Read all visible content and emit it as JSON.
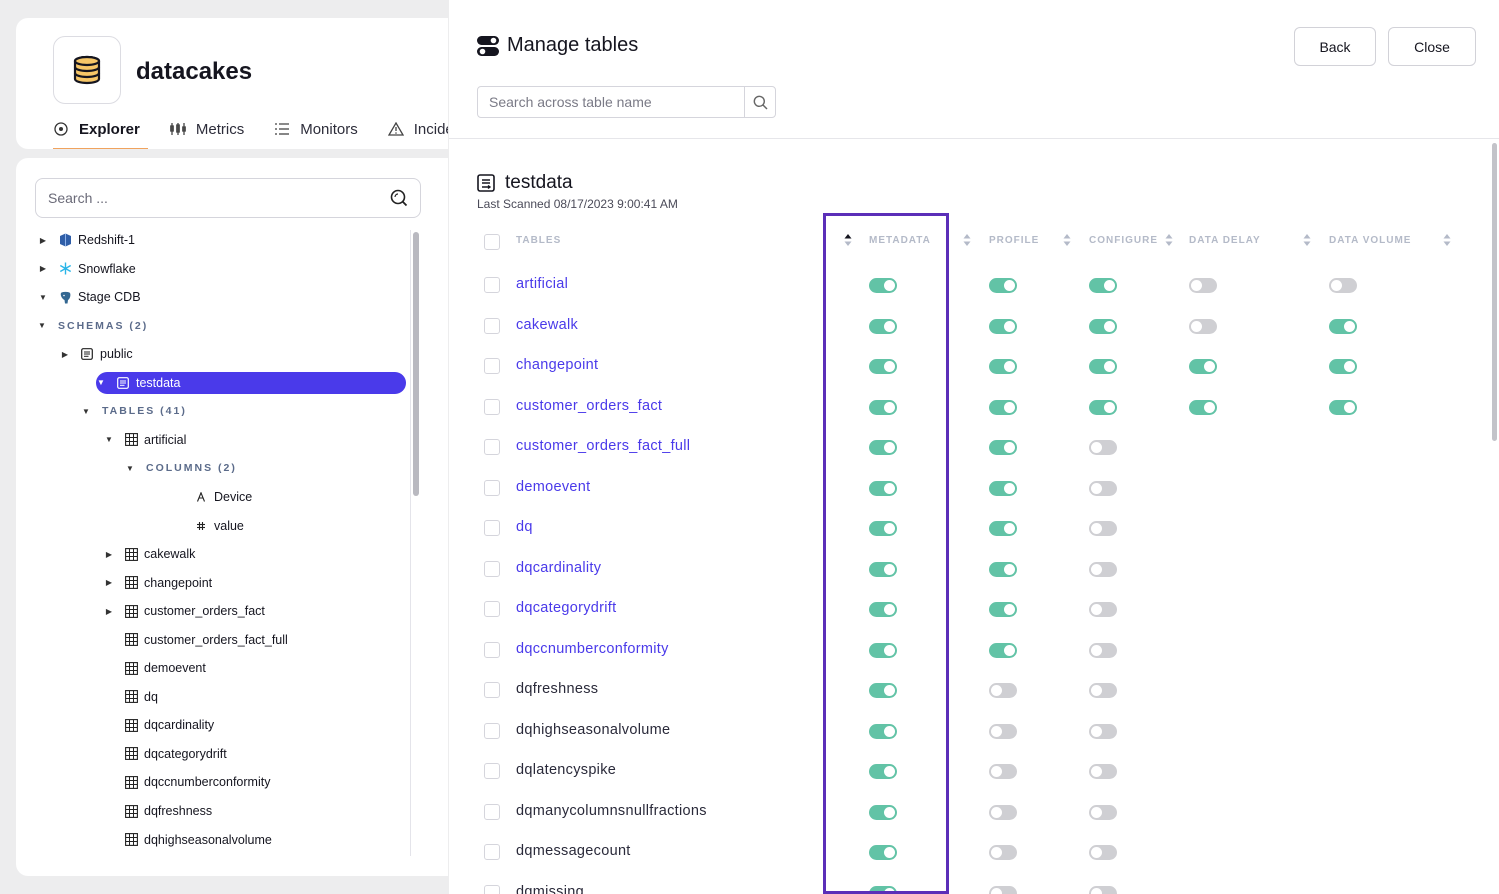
{
  "app": {
    "name": "datacakes",
    "logo_icon": "database-icon",
    "nav": [
      {
        "label": "Explorer",
        "icon": "target-icon",
        "active": true
      },
      {
        "label": "Metrics",
        "icon": "metrics-icon",
        "active": false
      },
      {
        "label": "Monitors",
        "icon": "list-icon",
        "active": false
      },
      {
        "label": "Incidents",
        "icon": "warning-icon",
        "active": false
      }
    ],
    "accent": "#f0a35e"
  },
  "tree": {
    "search_placeholder": "Search ...",
    "items": [
      {
        "label": "Redshift-1",
        "icon": "redshift-icon",
        "caret": "right",
        "level": 0,
        "kind": "node"
      },
      {
        "label": "Snowflake",
        "icon": "snowflake-icon",
        "caret": "right",
        "level": 0,
        "kind": "node"
      },
      {
        "label": "Stage CDB",
        "icon": "postgres-icon",
        "caret": "down",
        "level": 0,
        "kind": "node"
      },
      {
        "label": "SCHEMAS (2)",
        "icon": "",
        "caret": "down",
        "level": 1,
        "kind": "section"
      },
      {
        "label": "public",
        "icon": "schema-icon",
        "caret": "right",
        "level": 2,
        "kind": "node"
      },
      {
        "label": "testdata",
        "icon": "schema-icon",
        "caret": "down",
        "level": 2,
        "kind": "node",
        "selected": true
      },
      {
        "label": "TABLES (41)",
        "icon": "",
        "caret": "down",
        "level": 3,
        "kind": "section"
      },
      {
        "label": "artificial",
        "icon": "table-icon",
        "caret": "down",
        "level": 4,
        "kind": "node"
      },
      {
        "label": "COLUMNS (2)",
        "icon": "",
        "caret": "down",
        "level": 5,
        "kind": "section"
      },
      {
        "label": "Device",
        "icon": "text-column-icon",
        "caret": "",
        "level": 6,
        "kind": "node"
      },
      {
        "label": "value",
        "icon": "number-column-icon",
        "caret": "",
        "level": 6,
        "kind": "node"
      },
      {
        "label": "cakewalk",
        "icon": "table-icon",
        "caret": "right",
        "level": 4,
        "kind": "node"
      },
      {
        "label": "changepoint",
        "icon": "table-icon",
        "caret": "right",
        "level": 4,
        "kind": "node"
      },
      {
        "label": "customer_orders_fact",
        "icon": "table-icon",
        "caret": "right",
        "level": 4,
        "kind": "node"
      },
      {
        "label": "customer_orders_fact_full",
        "icon": "table-icon",
        "caret": "",
        "level": 4,
        "kind": "node"
      },
      {
        "label": "demoevent",
        "icon": "table-icon",
        "caret": "",
        "level": 4,
        "kind": "node"
      },
      {
        "label": "dq",
        "icon": "table-icon",
        "caret": "",
        "level": 4,
        "kind": "node"
      },
      {
        "label": "dqcardinality",
        "icon": "table-icon",
        "caret": "",
        "level": 4,
        "kind": "node"
      },
      {
        "label": "dqcategorydrift",
        "icon": "table-icon",
        "caret": "",
        "level": 4,
        "kind": "node"
      },
      {
        "label": "dqccnumberconformity",
        "icon": "table-icon",
        "caret": "",
        "level": 4,
        "kind": "node"
      },
      {
        "label": "dqfreshness",
        "icon": "table-icon",
        "caret": "",
        "level": 4,
        "kind": "node"
      },
      {
        "label": "dqhighseasonalvolume",
        "icon": "table-icon",
        "caret": "",
        "level": 4,
        "kind": "node"
      }
    ],
    "selected_color": "#4a3aea"
  },
  "drawer": {
    "title": "Manage tables",
    "title_icon": "toggles-icon",
    "back_label": "Back",
    "close_label": "Close",
    "search_placeholder": "Search across table name",
    "schema_name": "testdata",
    "schema_icon": "schema-icon",
    "last_scanned": "Last Scanned 08/17/2023 9:00:41 AM",
    "columns": {
      "tables": "TABLES",
      "metadata": "METADATA",
      "profile": "PROFILE",
      "configure": "CONFIGURE",
      "data_delay": "DATA DELAY",
      "data_volume": "DATA VOLUME"
    },
    "sorted_column": "metadata",
    "toggle_on_color": "#62c3a6",
    "toggle_off_color": "#cfcfd3",
    "highlight_color": "#5b2fb8",
    "rows": [
      {
        "name": "artificial",
        "linked": true,
        "metadata": true,
        "profile": true,
        "configure": true,
        "data_delay": false,
        "data_volume": false
      },
      {
        "name": "cakewalk",
        "linked": true,
        "metadata": true,
        "profile": true,
        "configure": true,
        "data_delay": false,
        "data_volume": true
      },
      {
        "name": "changepoint",
        "linked": true,
        "metadata": true,
        "profile": true,
        "configure": true,
        "data_delay": true,
        "data_volume": true
      },
      {
        "name": "customer_orders_fact",
        "linked": true,
        "metadata": true,
        "profile": true,
        "configure": true,
        "data_delay": true,
        "data_volume": true
      },
      {
        "name": "customer_orders_fact_full",
        "linked": true,
        "metadata": true,
        "profile": true,
        "configure": false,
        "data_delay": null,
        "data_volume": null
      },
      {
        "name": "demoevent",
        "linked": true,
        "metadata": true,
        "profile": true,
        "configure": false,
        "data_delay": null,
        "data_volume": null
      },
      {
        "name": "dq",
        "linked": true,
        "metadata": true,
        "profile": true,
        "configure": false,
        "data_delay": null,
        "data_volume": null
      },
      {
        "name": "dqcardinality",
        "linked": true,
        "metadata": true,
        "profile": true,
        "configure": false,
        "data_delay": null,
        "data_volume": null
      },
      {
        "name": "dqcategorydrift",
        "linked": true,
        "metadata": true,
        "profile": true,
        "configure": false,
        "data_delay": null,
        "data_volume": null
      },
      {
        "name": "dqccnumberconformity",
        "linked": true,
        "metadata": true,
        "profile": true,
        "configure": false,
        "data_delay": null,
        "data_volume": null
      },
      {
        "name": "dqfreshness",
        "linked": false,
        "metadata": true,
        "profile": false,
        "configure": false,
        "data_delay": null,
        "data_volume": null
      },
      {
        "name": "dqhighseasonalvolume",
        "linked": false,
        "metadata": true,
        "profile": false,
        "configure": false,
        "data_delay": null,
        "data_volume": null
      },
      {
        "name": "dqlatencyspike",
        "linked": false,
        "metadata": true,
        "profile": false,
        "configure": false,
        "data_delay": null,
        "data_volume": null
      },
      {
        "name": "dqmanycolumnsnullfractions",
        "linked": false,
        "metadata": true,
        "profile": false,
        "configure": false,
        "data_delay": null,
        "data_volume": null
      },
      {
        "name": "dqmessagecount",
        "linked": false,
        "metadata": true,
        "profile": false,
        "configure": false,
        "data_delay": null,
        "data_volume": null
      },
      {
        "name": "dqmissing",
        "linked": false,
        "metadata": true,
        "profile": false,
        "configure": false,
        "data_delay": null,
        "data_volume": null
      }
    ]
  }
}
